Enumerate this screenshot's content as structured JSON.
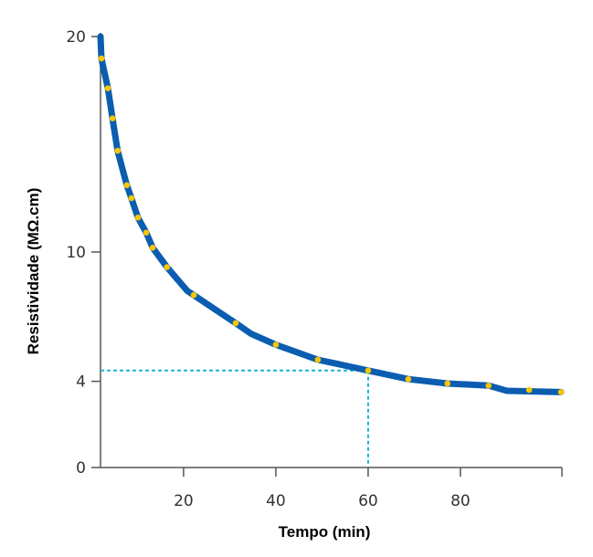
{
  "chart_data": {
    "type": "line",
    "title": "",
    "xlabel": "Tempo (min)",
    "ylabel": "Resistividade (MΩ.cm)",
    "xlim": [
      2,
      102
    ],
    "ylim": [
      0,
      20
    ],
    "xticks": [
      20,
      40,
      60,
      80
    ],
    "yticks": [
      0,
      4,
      10,
      20
    ],
    "grid": false,
    "colors": {
      "line": "#0b5db0",
      "markers": "#f7c600",
      "reference": "#1ab3d3",
      "axis": "#555555"
    },
    "series": [
      {
        "name": "curve",
        "x": [
          2,
          2.2,
          3.6,
          4.6,
          5.7,
          7.7,
          8.7,
          10.1,
          11.9,
          13.3,
          16.4,
          20.8,
          22.2,
          31.3,
          34.7,
          40,
          49.1,
          53.5,
          60,
          68.7,
          77.2,
          86.1,
          90.1,
          101.8
        ],
        "y": [
          20,
          18.98,
          17.6,
          16.2,
          14.7,
          13.1,
          12.5,
          11.6,
          10.9,
          10.2,
          9.3,
          8.2,
          8.0,
          6.7,
          6.2,
          5.7,
          5.0,
          4.8,
          4.5,
          4.1,
          3.9,
          3.8,
          3.56,
          3.5
        ]
      },
      {
        "name": "measurements",
        "x": [
          2.2,
          3.6,
          4.6,
          5.7,
          7.7,
          8.7,
          10.1,
          11.9,
          13.3,
          16.4,
          22.2,
          31.3,
          40,
          49.1,
          60,
          68.7,
          77.2,
          86.1,
          94.9,
          101.8
        ],
        "y": [
          18.98,
          17.6,
          16.2,
          14.7,
          13.1,
          12.5,
          11.6,
          10.9,
          10.2,
          9.3,
          8.0,
          6.7,
          5.7,
          5.0,
          4.5,
          4.1,
          3.9,
          3.8,
          3.6,
          3.5
        ]
      }
    ],
    "reference_point": {
      "x": 60,
      "y": 4.5
    }
  }
}
